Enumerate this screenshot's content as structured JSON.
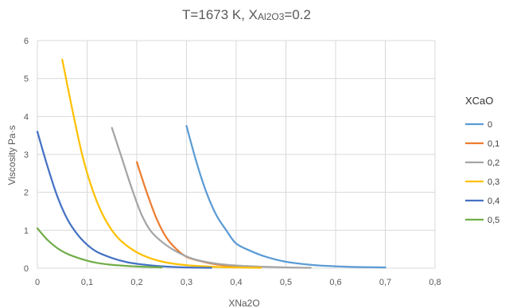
{
  "chart_data": {
    "type": "line",
    "title": {
      "main": "T=1673 K, X",
      "sub": "Al2O3",
      "rest": "=0.2"
    },
    "xlabel": "XNa2O",
    "ylabel": "Viscosity  Pa·s",
    "xlim": [
      0,
      0.8
    ],
    "ylim": [
      0,
      6
    ],
    "x_ticks": [
      "0",
      "0,1",
      "0,2",
      "0,3",
      "0,4",
      "0,5",
      "0,6",
      "0,7",
      "0,8"
    ],
    "y_ticks": [
      "0",
      "1",
      "2",
      "3",
      "4",
      "5",
      "6"
    ],
    "grid": true,
    "legend": {
      "title": "XCaO",
      "position": "right"
    },
    "series": [
      {
        "name": "0",
        "color": "#5b9bd5",
        "points": [
          [
            0.3,
            3.75
          ],
          [
            0.32,
            2.8
          ],
          [
            0.34,
            2.0
          ],
          [
            0.36,
            1.4
          ],
          [
            0.38,
            1.0
          ],
          [
            0.4,
            0.65
          ],
          [
            0.43,
            0.45
          ],
          [
            0.46,
            0.3
          ],
          [
            0.5,
            0.17
          ],
          [
            0.55,
            0.09
          ],
          [
            0.6,
            0.05
          ],
          [
            0.65,
            0.03
          ],
          [
            0.7,
            0.02
          ]
        ]
      },
      {
        "name": "0,1",
        "color": "#ed7d31",
        "points": [
          [
            0.2,
            2.8
          ],
          [
            0.22,
            2.0
          ],
          [
            0.24,
            1.3
          ],
          [
            0.26,
            0.8
          ],
          [
            0.28,
            0.5
          ],
          [
            0.3,
            0.3
          ],
          [
            0.33,
            0.18
          ],
          [
            0.36,
            0.1
          ],
          [
            0.4,
            0.05
          ],
          [
            0.45,
            0.02
          ]
        ]
      },
      {
        "name": "0,2",
        "color": "#a5a5a5",
        "points": [
          [
            0.15,
            3.7
          ],
          [
            0.17,
            2.9
          ],
          [
            0.19,
            2.1
          ],
          [
            0.21,
            1.4
          ],
          [
            0.23,
            0.95
          ],
          [
            0.26,
            0.6
          ],
          [
            0.29,
            0.37
          ],
          [
            0.32,
            0.22
          ],
          [
            0.36,
            0.12
          ],
          [
            0.4,
            0.07
          ],
          [
            0.45,
            0.04
          ],
          [
            0.5,
            0.02
          ],
          [
            0.55,
            0.01
          ]
        ]
      },
      {
        "name": "0,3",
        "color": "#ffc000",
        "points": [
          [
            0.05,
            5.5
          ],
          [
            0.07,
            4.2
          ],
          [
            0.09,
            3.0
          ],
          [
            0.11,
            2.1
          ],
          [
            0.13,
            1.45
          ],
          [
            0.15,
            1.0
          ],
          [
            0.17,
            0.7
          ],
          [
            0.2,
            0.42
          ],
          [
            0.23,
            0.25
          ],
          [
            0.26,
            0.15
          ],
          [
            0.3,
            0.08
          ],
          [
            0.35,
            0.04
          ],
          [
            0.4,
            0.02
          ],
          [
            0.45,
            0.01
          ]
        ]
      },
      {
        "name": "0,4",
        "color": "#4472c4",
        "points": [
          [
            0.0,
            3.6
          ],
          [
            0.02,
            2.7
          ],
          [
            0.04,
            1.9
          ],
          [
            0.06,
            1.3
          ],
          [
            0.08,
            0.9
          ],
          [
            0.1,
            0.62
          ],
          [
            0.12,
            0.43
          ],
          [
            0.15,
            0.27
          ],
          [
            0.18,
            0.16
          ],
          [
            0.21,
            0.1
          ],
          [
            0.25,
            0.05
          ],
          [
            0.3,
            0.02
          ],
          [
            0.35,
            0.01
          ]
        ]
      },
      {
        "name": "0,5",
        "color": "#70ad47",
        "points": [
          [
            0.0,
            1.05
          ],
          [
            0.02,
            0.75
          ],
          [
            0.04,
            0.53
          ],
          [
            0.06,
            0.38
          ],
          [
            0.08,
            0.28
          ],
          [
            0.1,
            0.2
          ],
          [
            0.12,
            0.14
          ],
          [
            0.15,
            0.09
          ],
          [
            0.18,
            0.06
          ],
          [
            0.21,
            0.04
          ],
          [
            0.25,
            0.02
          ]
        ]
      }
    ]
  }
}
